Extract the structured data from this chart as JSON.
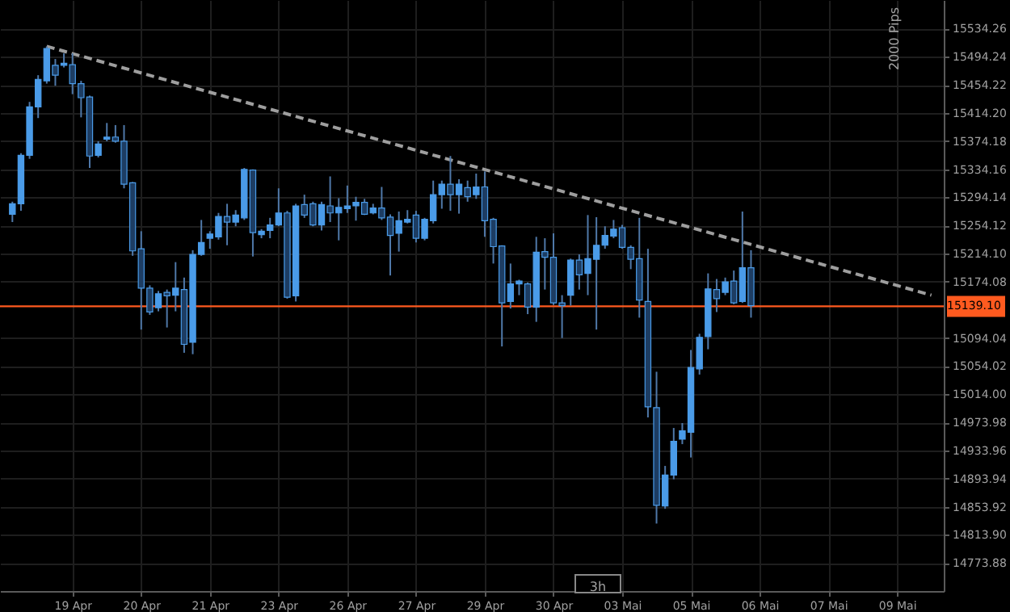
{
  "chart_data": {
    "type": "candlestick",
    "categories": [
      null,
      null,
      null,
      null,
      null,
      null,
      null,
      "19 Apr",
      null,
      null,
      null,
      null,
      null,
      null,
      null,
      "20 Apr",
      null,
      null,
      null,
      null,
      null,
      null,
      null,
      "21 Apr",
      null,
      null,
      null,
      null,
      null,
      null,
      null,
      "23 Apr",
      null,
      null,
      null,
      null,
      null,
      null,
      null,
      "26 Apr",
      null,
      null,
      null,
      null,
      null,
      null,
      null,
      "27 Apr",
      null,
      null,
      null,
      null,
      null,
      null,
      null,
      "29 Apr",
      null,
      null,
      null,
      null,
      null,
      null,
      null,
      "30 Apr",
      null,
      null,
      null,
      null,
      null,
      null,
      null,
      "03 Mai",
      null,
      null,
      null,
      null,
      null,
      null,
      null,
      "05 Mai",
      null,
      null,
      null,
      null,
      null,
      null,
      null,
      "06 Mai",
      null,
      null,
      null,
      null,
      null,
      null,
      null,
      "07 Mai",
      null,
      null,
      null,
      null,
      null,
      null,
      null,
      "09 Mai",
      null,
      null,
      null,
      null
    ],
    "ohlc": [
      [
        15270,
        15288,
        15259,
        15285
      ],
      [
        15285,
        15357,
        15275,
        15354
      ],
      [
        15354,
        15430,
        15349,
        15423
      ],
      [
        15423,
        15468,
        15407,
        15462
      ],
      [
        15460,
        15509,
        15456,
        15506
      ],
      [
        15482,
        15491,
        15453,
        15468
      ],
      [
        15482,
        15499,
        15479,
        15485
      ],
      [
        15483,
        15499,
        15441,
        15456
      ],
      [
        15456,
        15460,
        15408,
        15436
      ],
      [
        15437,
        15439,
        15336,
        15353
      ],
      [
        15354,
        15374,
        15351,
        15370
      ],
      [
        15377,
        15400,
        15374,
        15380
      ],
      [
        15380,
        15397,
        15372,
        15374
      ],
      [
        15374,
        15397,
        15307,
        15313
      ],
      [
        15315,
        15316,
        15211,
        15218
      ],
      [
        15221,
        15246,
        15106,
        15165
      ],
      [
        15165,
        15169,
        15127,
        15131
      ],
      [
        15137,
        15161,
        15132,
        15157
      ],
      [
        15159,
        15163,
        15109,
        15154
      ],
      [
        15155,
        15202,
        15132,
        15165
      ],
      [
        15163,
        15180,
        15073,
        15085
      ],
      [
        15088,
        15219,
        15071,
        15213
      ],
      [
        15213,
        15262,
        15211,
        15230
      ],
      [
        15236,
        15246,
        15221,
        15242
      ],
      [
        15238,
        15272,
        15234,
        15267
      ],
      [
        15267,
        15285,
        15226,
        15259
      ],
      [
        15259,
        15276,
        15253,
        15269
      ],
      [
        15265,
        15336,
        15262,
        15334
      ],
      [
        15333,
        15334,
        15210,
        15244
      ],
      [
        15241,
        15249,
        15236,
        15246
      ],
      [
        15247,
        15265,
        15236,
        15255
      ],
      [
        15255,
        15307,
        15253,
        15272
      ],
      [
        15272,
        15275,
        15150,
        15152
      ],
      [
        15154,
        15285,
        15146,
        15282
      ],
      [
        15284,
        15298,
        15265,
        15269
      ],
      [
        15285,
        15288,
        15253,
        15255
      ],
      [
        15255,
        15288,
        15247,
        15284
      ],
      [
        15282,
        15324,
        15259,
        15272
      ],
      [
        15272,
        15293,
        15233,
        15280
      ],
      [
        15278,
        15311,
        15272,
        15282
      ],
      [
        15282,
        15295,
        15261,
        15287
      ],
      [
        15287,
        15292,
        15269,
        15270
      ],
      [
        15272,
        15285,
        15270,
        15279
      ],
      [
        15279,
        15309,
        15262,
        15265
      ],
      [
        15266,
        15270,
        15183,
        15240
      ],
      [
        15243,
        15274,
        15217,
        15261
      ],
      [
        15259,
        15276,
        15257,
        15263
      ],
      [
        15269,
        15275,
        15230,
        15236
      ],
      [
        15236,
        15265,
        15233,
        15263
      ],
      [
        15261,
        15318,
        15257,
        15298
      ],
      [
        15298,
        15318,
        15278,
        15313
      ],
      [
        15313,
        15353,
        15275,
        15298
      ],
      [
        15298,
        15320,
        15271,
        15313
      ],
      [
        15308,
        15318,
        15288,
        15295
      ],
      [
        15298,
        15328,
        15292,
        15309
      ],
      [
        15309,
        15331,
        15238,
        15261
      ],
      [
        15263,
        15265,
        15200,
        15224
      ],
      [
        15225,
        15226,
        15082,
        15144
      ],
      [
        15146,
        15200,
        15136,
        15171
      ],
      [
        15171,
        15177,
        15155,
        15175
      ],
      [
        15171,
        15173,
        15128,
        15138
      ],
      [
        15138,
        15238,
        15117,
        15216
      ],
      [
        15217,
        15236,
        15163,
        15209
      ],
      [
        15209,
        15243,
        15141,
        15144
      ],
      [
        15144,
        15155,
        15094,
        15140
      ],
      [
        15155,
        15207,
        15140,
        15205
      ],
      [
        15205,
        15213,
        15163,
        15184
      ],
      [
        15186,
        15269,
        15155,
        15207
      ],
      [
        15206,
        15266,
        15106,
        15226
      ],
      [
        15226,
        15253,
        15221,
        15240
      ],
      [
        15239,
        15262,
        15236,
        15249
      ],
      [
        15251,
        15255,
        15221,
        15223
      ],
      [
        15223,
        15226,
        15192,
        15206
      ],
      [
        15207,
        15265,
        15123,
        15148
      ],
      [
        15146,
        15221,
        14981,
        14996
      ],
      [
        14995,
        15046,
        14830,
        14856
      ],
      [
        14855,
        14912,
        14851,
        14899
      ],
      [
        14899,
        14966,
        14893,
        14947
      ],
      [
        14950,
        14973,
        14943,
        14962
      ],
      [
        14960,
        15077,
        14924,
        15052
      ],
      [
        15050,
        15100,
        15042,
        15095
      ],
      [
        15096,
        15186,
        15078,
        15164
      ],
      [
        15163,
        15178,
        15131,
        15150
      ],
      [
        15159,
        15180,
        15155,
        15174
      ],
      [
        15175,
        15190,
        15142,
        15144
      ],
      [
        15146,
        15274,
        15144,
        15194
      ],
      [
        15194,
        15219,
        15123,
        15140
      ],
      null,
      null,
      null,
      null,
      null,
      null,
      null,
      null,
      null,
      null,
      null,
      null,
      null,
      null,
      null,
      null,
      null,
      null,
      null,
      null,
      null
    ],
    "colors": [
      "#4a9be8",
      "#4a9be8",
      "#4a9be8",
      "#4a9be8",
      "#4a9be8",
      "#1d3d63",
      "#4a9be8",
      "#1d3d63",
      "#1d3d63",
      "#1d3d63",
      "#4a9be8",
      "#4a9be8",
      "#1d3d63",
      "#1d3d63",
      "#1d3d63",
      "#1d3d63",
      "#1d3d63",
      "#4a9be8",
      "#1d3d63",
      "#4a9be8",
      "#1d3d63",
      "#4a9be8",
      "#4a9be8",
      "#4a9be8",
      "#4a9be8",
      "#1d3d63",
      "#4a9be8",
      "#4a9be8",
      "#1d3d63",
      "#4a9be8",
      "#4a9be8",
      "#4a9be8",
      "#1d3d63",
      "#4a9be8",
      "#1d3d63",
      "#1d3d63",
      "#4a9be8",
      "#1d3d63",
      "#4a9be8",
      "#4a9be8",
      "#4a9be8",
      "#1d3d63",
      "#4a9be8",
      "#1d3d63",
      "#1d3d63",
      "#4a9be8",
      "#4a9be8",
      "#1d3d63",
      "#4a9be8",
      "#4a9be8",
      "#4a9be8",
      "#1d3d63",
      "#4a9be8",
      "#1d3d63",
      "#4a9be8",
      "#1d3d63",
      "#1d3d63",
      "#1d3d63",
      "#4a9be8",
      "#4a9be8",
      "#1d3d63",
      "#4a9be8",
      "#1d3d63",
      "#1d3d63",
      "#1d3d63",
      "#4a9be8",
      "#1d3d63",
      "#4a9be8",
      "#4a9be8",
      "#4a9be8",
      "#4a9be8",
      "#1d3d63",
      "#1d3d63",
      "#1d3d63",
      "#1d3d63",
      "#1d3d63",
      "#4a9be8",
      "#4a9be8",
      "#4a9be8",
      "#4a9be8",
      "#4a9be8",
      "#4a9be8",
      "#1d3d63",
      "#4a9be8",
      "#1d3d63",
      "#4a9be8",
      "#1d3d63",
      null,
      null,
      null,
      null,
      null,
      null,
      null,
      null,
      null,
      null,
      null,
      null,
      null,
      null,
      null,
      null,
      null,
      null,
      null,
      null,
      null
    ],
    "series": [
      {
        "type": "line",
        "color": "#9e9e9e",
        "line_style": "dashed",
        "values": [
          null,
          null,
          null,
          null,
          15509,
          null,
          null,
          null,
          null,
          null,
          null,
          null,
          null,
          null,
          null,
          null,
          null,
          null,
          null,
          null,
          null,
          null,
          null,
          null,
          null,
          null,
          null,
          null,
          null,
          null,
          null,
          null,
          null,
          null,
          null,
          null,
          null,
          null,
          null,
          null,
          null,
          null,
          null,
          null,
          null,
          null,
          null,
          null,
          null,
          null,
          null,
          null,
          null,
          null,
          null,
          null,
          null,
          null,
          null,
          null,
          null,
          null,
          null,
          null,
          null,
          null,
          null,
          null,
          null,
          null,
          null,
          null,
          null,
          null,
          null,
          null,
          null,
          null,
          null,
          null,
          null,
          null,
          null,
          null,
          null,
          null,
          null,
          null,
          null,
          null,
          null,
          null,
          null,
          null,
          null,
          null,
          null,
          null,
          null,
          null,
          null,
          null,
          null,
          null,
          null,
          null,
          null,
          15155
        ]
      }
    ],
    "ylim": [
      14734,
      15575
    ],
    "yticks": [
      {
        "value": 14773.88,
        "label": "14773.88"
      },
      {
        "value": 14813.9,
        "label": "14813.90"
      },
      {
        "value": 14853.92,
        "label": "14853.92"
      },
      {
        "value": 14893.94,
        "label": "14893.94"
      },
      {
        "value": 14933.96,
        "label": "14933.96"
      },
      {
        "value": 14973.98,
        "label": "14973.98"
      },
      {
        "value": 15014,
        "label": "15014.00"
      },
      {
        "value": 15054.02,
        "label": "15054.02"
      },
      {
        "value": 15094.04,
        "label": "15094.04"
      },
      {
        "value": 15174.08,
        "label": "15174.08"
      },
      {
        "value": 15214.1,
        "label": "15214.10"
      },
      {
        "value": 15254.12,
        "label": "15254.12"
      },
      {
        "value": 15294.14,
        "label": "15294.14"
      },
      {
        "value": 15334.16,
        "label": "15334.16"
      },
      {
        "value": 15374.18,
        "label": "15374.18"
      },
      {
        "value": 15414.2,
        "label": "15414.20"
      },
      {
        "value": 15454.22,
        "label": "15454.22"
      },
      {
        "value": 15494.24,
        "label": "15494.24"
      },
      {
        "value": 15534.26,
        "label": "15534.26"
      }
    ],
    "ref_lines": [
      {
        "axis": "y",
        "value": 15139.1,
        "label": "15139.10",
        "color": "#ff5a1f"
      }
    ],
    "annotations": [
      "2000 Pips",
      "3h"
    ],
    "grid": true
  }
}
